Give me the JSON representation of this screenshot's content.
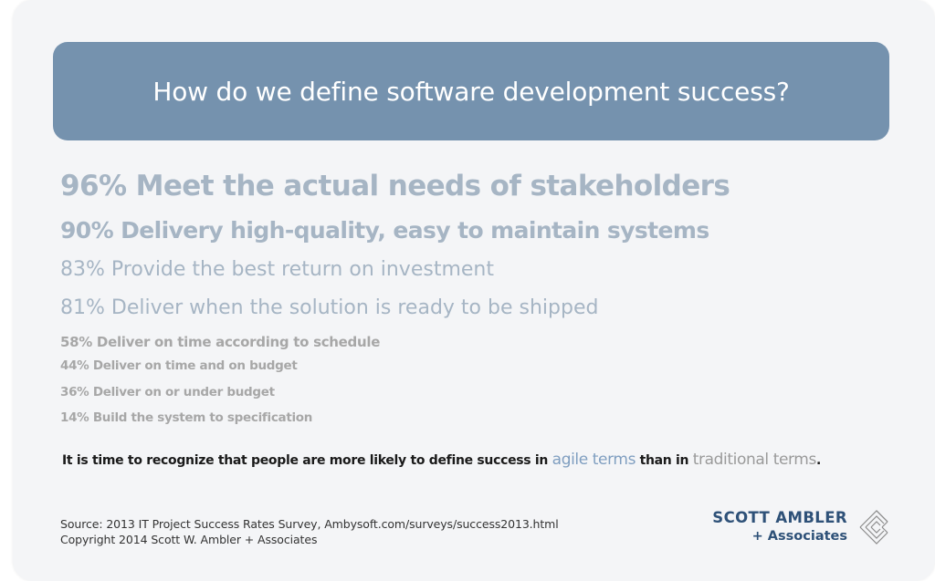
{
  "banner": {
    "title": "How do we define software development success?",
    "color": "#7592ae"
  },
  "stats": [
    "96% Meet the actual needs of stakeholders",
    "90%  Delivery high-quality, easy to maintain systems",
    "83% Provide the best return on investment",
    "81% Deliver when the solution is ready to be shipped",
    "58% Deliver on time according to schedule",
    "44% Deliver on time and on budget",
    "36% Deliver on or under budget",
    "14%  Build the system to specification"
  ],
  "conclusion": {
    "prefix": "It is time to recognize that people are more likely to define success in ",
    "agile": "agile terms",
    "middle": " than in ",
    "traditional": "traditional terms",
    "suffix": "."
  },
  "source": {
    "line1": "Source: 2013 IT Project Success Rates Survey, Ambysoft.com/surveys/success2013.html",
    "line2": "Copyright 2014 Scott W. Ambler + Associates"
  },
  "logo": {
    "name": "SCOTT AMBLER",
    "sub": "+ Associates",
    "color": "#2e5178",
    "icon": "diamond-lattice-logo-icon"
  }
}
